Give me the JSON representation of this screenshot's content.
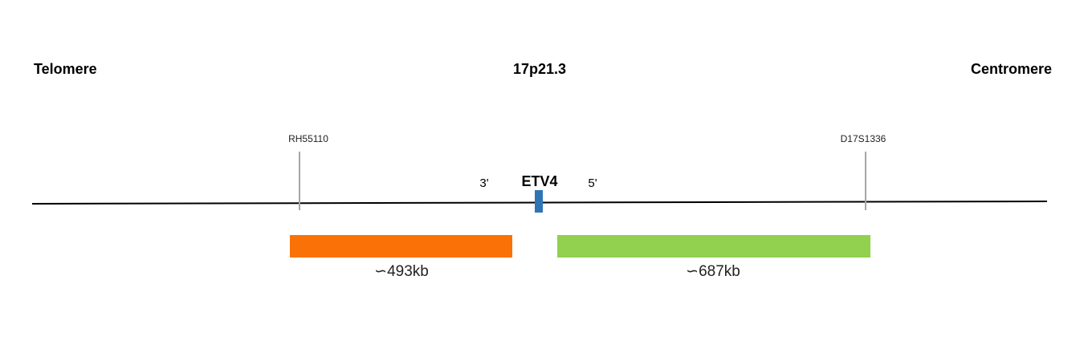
{
  "header": {
    "left": "Telomere",
    "center": "17p21.3",
    "right": "Centromere"
  },
  "markers": [
    {
      "label": "RH55110"
    },
    {
      "label": "D17S1336"
    }
  ],
  "gene": {
    "label": "ETV4",
    "left_end": "3'",
    "right_end": "5'"
  },
  "probes": [
    {
      "label": "∽493kb"
    },
    {
      "label": "∽687kb"
    }
  ]
}
